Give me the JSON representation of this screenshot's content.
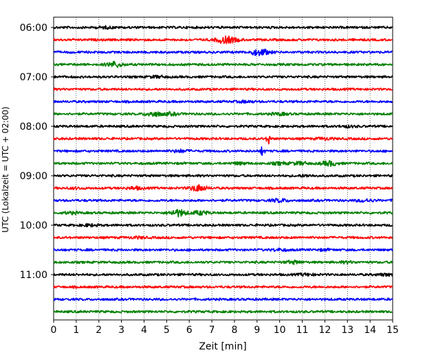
{
  "chart_data": {
    "type": "line",
    "title": "",
    "xlabel": "Zeit  [min]",
    "ylabel": "UTC (Lokalzeit = UTC + 02:00)",
    "xlim": [
      0,
      15
    ],
    "x_ticks": [
      "0",
      "1",
      "2",
      "3",
      "4",
      "5",
      "6",
      "7",
      "8",
      "9",
      "10",
      "11",
      "12",
      "13",
      "14",
      "15"
    ],
    "y_tick_labels": [
      "06:00",
      "07:00",
      "08:00",
      "09:00",
      "10:00",
      "11:00"
    ],
    "grid": "vertical dotted at each minute",
    "trace_interval_minutes": 15,
    "trace_colors": [
      "#000000",
      "#ff0000",
      "#0000ff",
      "#008000"
    ],
    "traces": [
      {
        "start": "06:00",
        "color": "#000000",
        "events": [
          {
            "t": 2.3,
            "amp": 1.0
          }
        ]
      },
      {
        "start": "06:15",
        "color": "#ff0000",
        "events": [
          {
            "t": 7.5,
            "amp": 3.5
          },
          {
            "t": 7.9,
            "amp": 2.2
          }
        ]
      },
      {
        "start": "06:30",
        "color": "#0000ff",
        "events": [
          {
            "t": 9.0,
            "amp": 2.8
          },
          {
            "t": 9.3,
            "amp": 2.0
          }
        ]
      },
      {
        "start": "06:45",
        "color": "#008000",
        "events": [
          {
            "t": 2.7,
            "amp": 3.5
          }
        ]
      },
      {
        "start": "07:00",
        "color": "#000000",
        "events": [
          {
            "t": 4.6,
            "amp": 1.2
          }
        ]
      },
      {
        "start": "07:15",
        "color": "#ff0000",
        "events": []
      },
      {
        "start": "07:30",
        "color": "#0000ff",
        "events": [
          {
            "t": 8.5,
            "amp": 1.0
          }
        ]
      },
      {
        "start": "07:45",
        "color": "#008000",
        "events": [
          {
            "t": 4.4,
            "amp": 3.0
          },
          {
            "t": 5.2,
            "amp": 1.5
          },
          {
            "t": 10.0,
            "amp": 1.4
          }
        ]
      },
      {
        "start": "08:00",
        "color": "#000000",
        "events": [
          {
            "t": 13.0,
            "amp": 1.0
          }
        ]
      },
      {
        "start": "08:15",
        "color": "#ff0000",
        "events": [
          {
            "t": 9.5,
            "amp": 9.0
          },
          {
            "t": 12.0,
            "amp": 1.2
          }
        ]
      },
      {
        "start": "08:30",
        "color": "#0000ff",
        "events": [
          {
            "t": 9.25,
            "amp": 9.0
          },
          {
            "t": 5.6,
            "amp": 1.6
          }
        ]
      },
      {
        "start": "08:45",
        "color": "#008000",
        "events": [
          {
            "t": 12.2,
            "amp": 3.0
          },
          {
            "t": 10.9,
            "amp": 1.8
          },
          {
            "t": 10.0,
            "amp": 1.5
          },
          {
            "t": 8.2,
            "amp": 1.2
          }
        ]
      },
      {
        "start": "09:00",
        "color": "#000000",
        "events": [
          {
            "t": 11.2,
            "amp": 1.0
          }
        ]
      },
      {
        "start": "09:15",
        "color": "#ff0000",
        "events": [
          {
            "t": 6.4,
            "amp": 4.0
          },
          {
            "t": 3.6,
            "amp": 1.6
          },
          {
            "t": 1.0,
            "amp": 0.8
          }
        ]
      },
      {
        "start": "09:30",
        "color": "#0000ff",
        "events": [
          {
            "t": 10.0,
            "amp": 2.0
          },
          {
            "t": 13.8,
            "amp": 1.6
          }
        ]
      },
      {
        "start": "09:45",
        "color": "#008000",
        "events": [
          {
            "t": 5.5,
            "amp": 4.5
          },
          {
            "t": 6.5,
            "amp": 2.4
          },
          {
            "t": 0.8,
            "amp": 1.2
          }
        ]
      },
      {
        "start": "10:00",
        "color": "#000000",
        "events": [
          {
            "t": 1.6,
            "amp": 1.2
          }
        ]
      },
      {
        "start": "10:15",
        "color": "#ff0000",
        "events": [
          {
            "t": 3.7,
            "amp": 1.0
          }
        ]
      },
      {
        "start": "10:30",
        "color": "#0000ff",
        "events": [
          {
            "t": 10.0,
            "amp": 1.3
          },
          {
            "t": 12.0,
            "amp": 0.8
          }
        ]
      },
      {
        "start": "10:45",
        "color": "#008000",
        "events": [
          {
            "t": 10.6,
            "amp": 1.8
          },
          {
            "t": 13.0,
            "amp": 1.0
          }
        ]
      },
      {
        "start": "11:00",
        "color": "#000000",
        "events": [
          {
            "t": 11.2,
            "amp": 1.2
          },
          {
            "t": 14.7,
            "amp": 1.2
          }
        ]
      },
      {
        "start": "11:15",
        "color": "#ff0000",
        "events": []
      },
      {
        "start": "11:30",
        "color": "#0000ff",
        "events": []
      },
      {
        "start": "11:45",
        "color": "#008000",
        "events": []
      }
    ]
  }
}
